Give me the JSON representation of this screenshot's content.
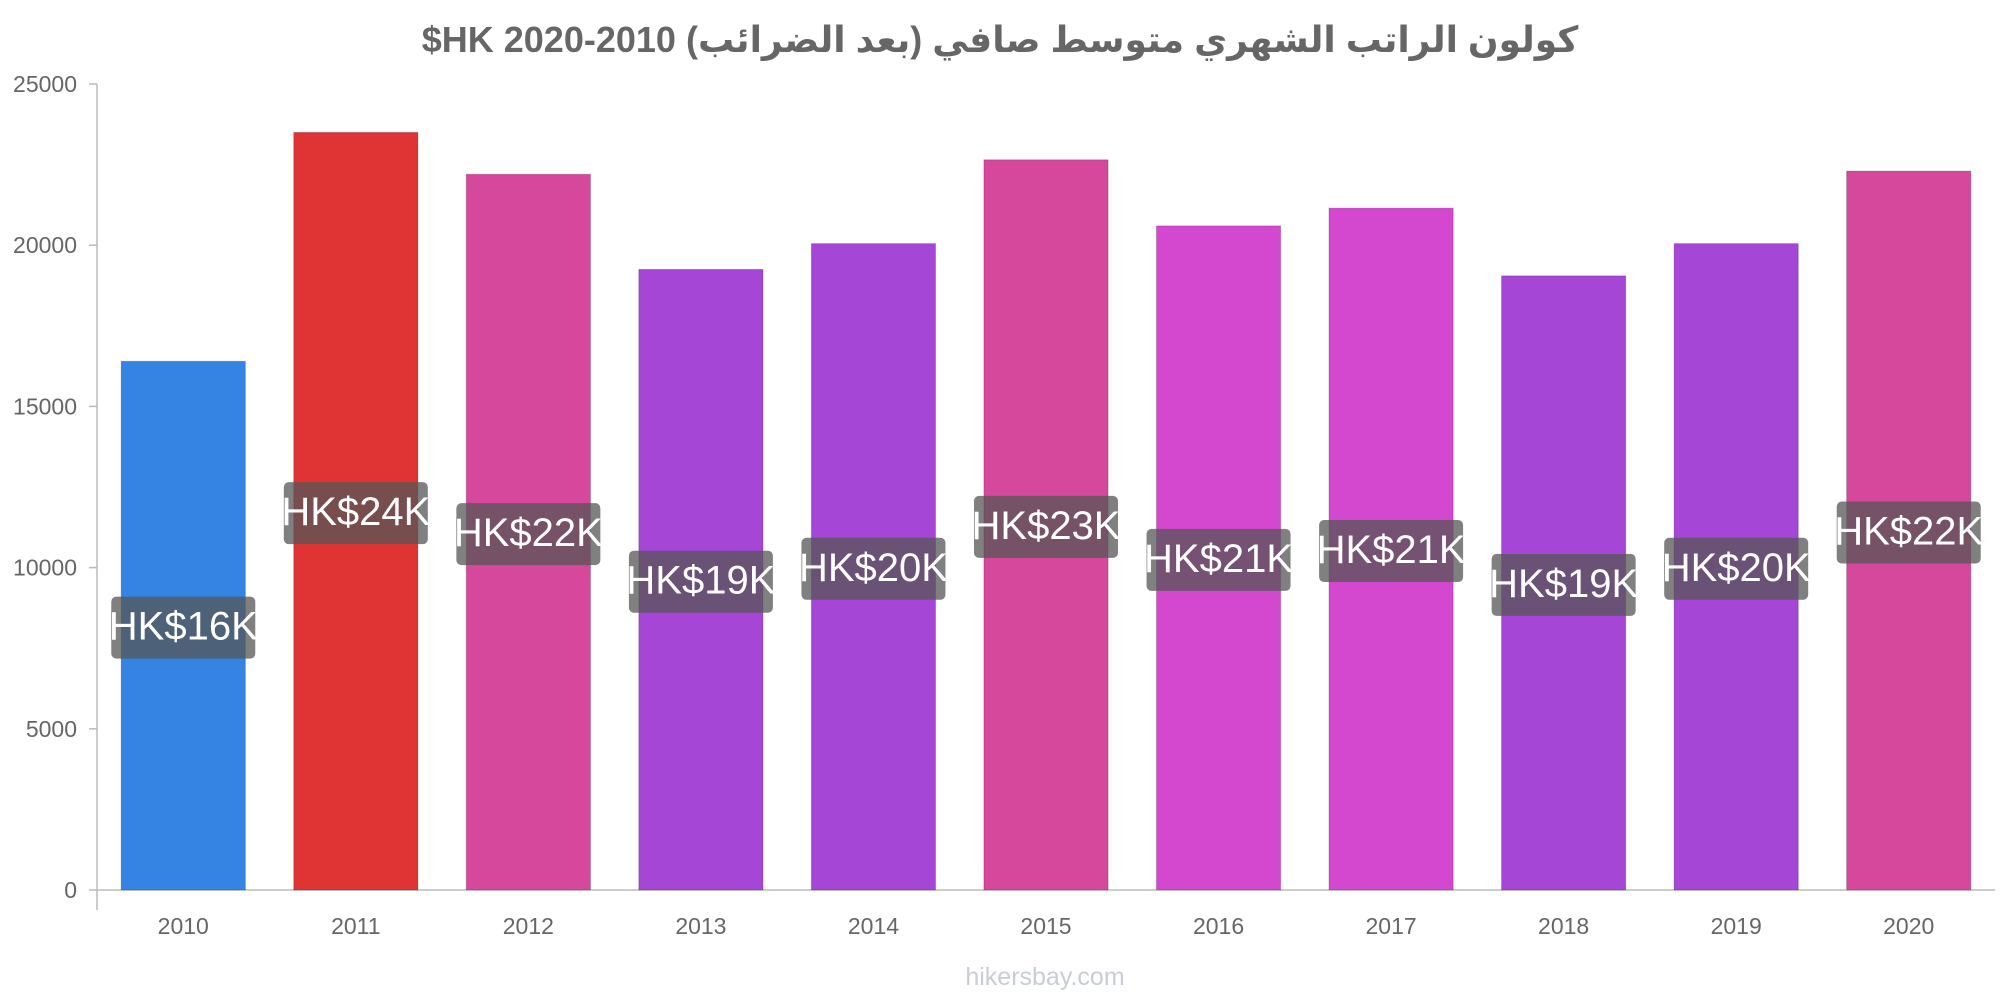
{
  "chart_data": {
    "type": "bar",
    "title": "كولون الراتب الشهري متوسط صافي (بعد الضرائب) 2010-2020 HK$",
    "categories": [
      "2010",
      "2011",
      "2012",
      "2013",
      "2014",
      "2015",
      "2016",
      "2017",
      "2018",
      "2019",
      "2020"
    ],
    "values": [
      16400,
      23500,
      22200,
      19250,
      20050,
      22650,
      20600,
      21150,
      19050,
      20050,
      22300
    ],
    "data_labels": [
      "HK$16K",
      "HK$24K",
      "HK$22K",
      "HK$19K",
      "HK$20K",
      "HK$23K",
      "HK$21K",
      "HK$21K",
      "HK$19K",
      "HK$20K",
      "HK$22K"
    ],
    "colors": [
      "#3584e4",
      "#e03434",
      "#d6489c",
      "#a646d6",
      "#a646d6",
      "#d6489c",
      "#d448d0",
      "#d448d0",
      "#a646d6",
      "#a646d6",
      "#d6489c"
    ],
    "label_box_color": "#555555",
    "yticks": [
      0,
      5000,
      10000,
      15000,
      20000,
      25000
    ],
    "ylim": [
      0,
      25000
    ],
    "xlabel": "",
    "ylabel": "",
    "grid": false
  },
  "watermark": "hikersbay.com"
}
